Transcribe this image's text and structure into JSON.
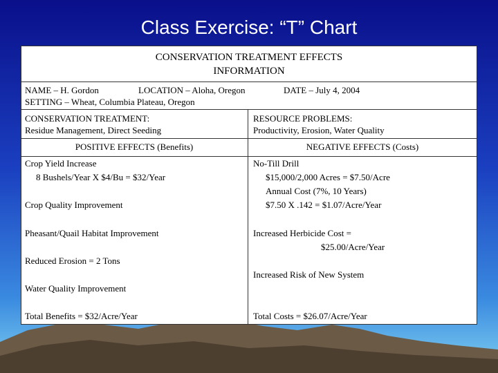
{
  "title": "Class Exercise: “T” Chart",
  "header": {
    "lines": [
      "CONSERVATION TREATMENT EFFECTS",
      "INFORMATION"
    ]
  },
  "info": {
    "name": "NAME –   H. Gordon",
    "location": "LOCATION –  Aloha, Oregon",
    "date": "DATE – July 4, 2004",
    "setting": "SETTING –  Wheat, Columbia Plateau, Oregon"
  },
  "treatment": {
    "label": "CONSERVATION TREATMENT:",
    "text": "Residue Management, Direct Seeding"
  },
  "problems": {
    "label": "RESOURCE PROBLEMS:",
    "text": "Productivity, Erosion, Water Quality"
  },
  "positive": {
    "heading": "POSITIVE EFFECTS (Benefits)",
    "items": [
      "Crop Yield Increase",
      "8 Bushels/Year X $4/Bu = $32/Year",
      "Crop Quality Improvement",
      "Pheasant/Quail Habitat Improvement",
      "Reduced Erosion = 2 Tons",
      "Water Quality Improvement",
      "Total Benefits = $32/Acre/Year"
    ]
  },
  "negative": {
    "heading": "NEGATIVE EFFECTS (Costs)",
    "items": [
      "No-Till Drill",
      "$15,000/2,000 Acres = $7.50/Acre",
      "Annual Cost (7%, 10 Years)",
      "$7.50 X .142 = $1.07/Acre/Year",
      "Increased Herbicide Cost =",
      "$25.00/Acre/Year",
      "Increased Risk of New System",
      "Total Costs = $26.07/Acre/Year"
    ]
  }
}
